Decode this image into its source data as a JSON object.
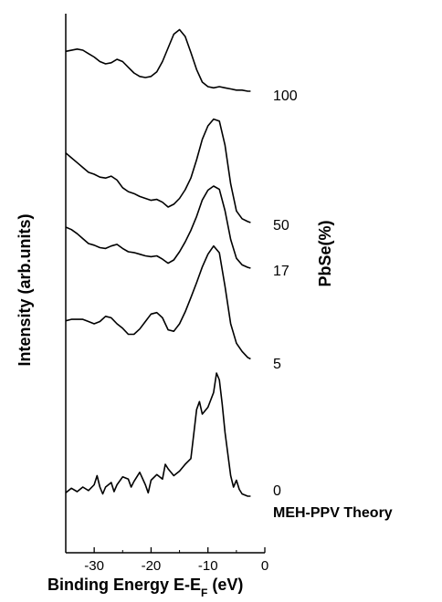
{
  "chart_data": {
    "type": "line",
    "title": "",
    "xlabel": "Binding Energy E-E",
    "xlabel_sub": "F",
    "xlabel_unit": " (eV)",
    "ylabel": "Intensity (arb.units)",
    "right_label": "PbSe(%)",
    "xlim": [
      -35,
      0
    ],
    "x_ticks": [
      -30,
      -20,
      -10,
      0
    ],
    "x_tick_labels": [
      "-30",
      "-20",
      "-10",
      "0"
    ],
    "grid": false,
    "legend": "none",
    "series": [
      {
        "name": "100",
        "x": [
          -35,
          -33,
          -32,
          -31,
          -30,
          -29,
          -28,
          -27,
          -26,
          -25,
          -24,
          -23,
          -22,
          -21,
          -20,
          -19,
          -18,
          -17,
          -16,
          -15,
          -14,
          -13,
          -12,
          -11,
          -10,
          -9,
          -8,
          -7,
          -6,
          -5,
          -4,
          -3,
          -2.5
        ],
        "y": [
          3.5,
          3.7,
          3.6,
          3.3,
          3.0,
          2.6,
          2.4,
          2.5,
          2.8,
          2.6,
          2.1,
          1.6,
          1.3,
          1.2,
          1.3,
          1.7,
          2.6,
          3.8,
          5.0,
          5.4,
          4.8,
          3.4,
          1.9,
          0.8,
          0.4,
          0.3,
          0.4,
          0.3,
          0.2,
          0.1,
          0.1,
          0.0,
          0.0
        ]
      },
      {
        "name": "50",
        "x": [
          -35,
          -34,
          -33,
          -32,
          -31,
          -30,
          -29,
          -28,
          -27,
          -26,
          -25,
          -24,
          -23,
          -22,
          -21,
          -20,
          -19,
          -18,
          -17,
          -16,
          -15,
          -14,
          -13,
          -12,
          -11,
          -10,
          -9,
          -8,
          -7,
          -6,
          -5,
          -4,
          -3,
          -2.5
        ],
        "y": [
          7.2,
          6.7,
          6.2,
          5.7,
          5.2,
          5.0,
          4.7,
          4.6,
          4.8,
          4.4,
          3.6,
          3.2,
          3.0,
          2.7,
          2.5,
          2.3,
          2.4,
          2.1,
          1.6,
          1.9,
          2.5,
          3.4,
          4.6,
          6.5,
          8.6,
          10.0,
          10.7,
          10.5,
          8.0,
          4.0,
          1.2,
          0.4,
          0.1,
          0.0
        ]
      },
      {
        "name": "17",
        "x": [
          -35,
          -34,
          -33,
          -32,
          -31,
          -30,
          -29,
          -28,
          -27,
          -26,
          -25,
          -24,
          -23,
          -22,
          -21,
          -20,
          -19,
          -18,
          -17,
          -16,
          -15,
          -14,
          -13,
          -12,
          -11,
          -10,
          -9,
          -8,
          -7,
          -6,
          -5,
          -4,
          -3,
          -2.5
        ],
        "y": [
          5.0,
          4.7,
          4.2,
          3.6,
          3.0,
          2.8,
          2.5,
          2.4,
          2.7,
          2.9,
          2.4,
          2.0,
          1.9,
          1.7,
          1.5,
          1.4,
          1.5,
          1.1,
          0.6,
          1.0,
          2.0,
          3.2,
          4.6,
          6.3,
          8.3,
          9.5,
          10.0,
          9.6,
          7.0,
          3.5,
          1.2,
          0.4,
          0.1,
          0.0
        ]
      },
      {
        "name": "5",
        "x": [
          -35,
          -34,
          -33,
          -32,
          -31,
          -30,
          -29,
          -28,
          -27,
          -26,
          -25,
          -24,
          -23,
          -22,
          -21,
          -20,
          -19,
          -18,
          -17,
          -16,
          -15,
          -14,
          -13,
          -12,
          -11,
          -10,
          -9,
          -8,
          -7,
          -6,
          -5,
          -4,
          -3,
          -2.5
        ],
        "y": [
          5.4,
          5.6,
          5.6,
          5.6,
          5.3,
          5.0,
          5.3,
          6.0,
          5.8,
          5.0,
          4.4,
          3.6,
          3.6,
          4.3,
          5.3,
          6.3,
          6.5,
          5.8,
          4.2,
          4.0,
          5.0,
          6.6,
          8.5,
          10.5,
          12.6,
          14.3,
          15.4,
          14.5,
          10.0,
          5.0,
          2.4,
          1.3,
          0.5,
          0.3
        ]
      },
      {
        "name": "0",
        "x": [
          -35,
          -34,
          -33,
          -32,
          -31,
          -30,
          -29.5,
          -29,
          -28.5,
          -28,
          -27,
          -26.5,
          -26,
          -25,
          -24,
          -23.5,
          -23,
          -22,
          -21,
          -20.5,
          -20,
          -19,
          -18,
          -17.5,
          -17,
          -16,
          -15,
          -14,
          -13,
          -12.5,
          -12,
          -11.5,
          -11,
          -10,
          -9,
          -8.5,
          -8,
          -7.5,
          -7,
          -6,
          -5.5,
          -5,
          -4.5,
          -4,
          -3,
          -2.5
        ],
        "y": [
          0.3,
          0.7,
          0.4,
          0.8,
          0.5,
          1.0,
          1.8,
          0.8,
          0.2,
          0.8,
          1.2,
          0.4,
          1.0,
          1.7,
          1.5,
          0.8,
          1.3,
          2.1,
          1.0,
          0.3,
          1.4,
          1.9,
          1.5,
          2.8,
          2.4,
          1.8,
          2.2,
          2.8,
          3.3,
          5.4,
          7.6,
          8.3,
          7.2,
          7.8,
          9.1,
          10.8,
          10.2,
          8.1,
          5.6,
          1.8,
          0.8,
          1.4,
          0.6,
          0.2,
          0.0,
          0.0
        ]
      }
    ]
  },
  "labels": {
    "s100": "100",
    "s50": "50",
    "s17": "17",
    "s5": "5",
    "s0": "0",
    "theory": "MEH-PPV Theory"
  }
}
